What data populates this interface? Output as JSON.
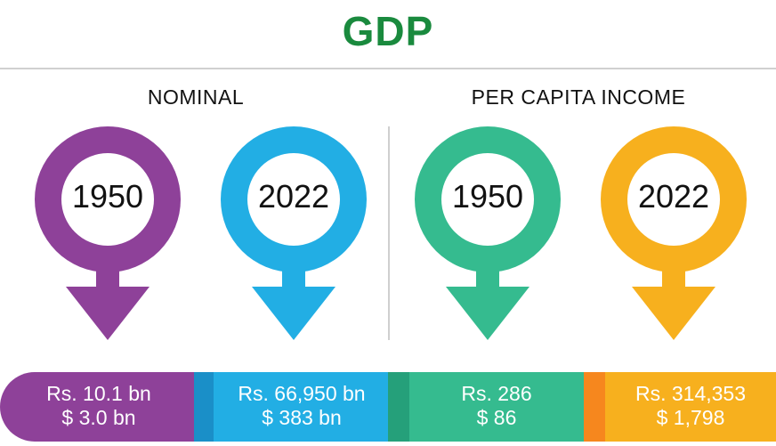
{
  "title": "GDP",
  "sections": {
    "nominal": "NOMINAL",
    "per_capita": "PER CAPITA INCOME"
  },
  "markers": [
    {
      "year": "1950",
      "color": "#8e4199"
    },
    {
      "year": "2022",
      "color": "#22aee4"
    },
    {
      "year": "1950",
      "color": "#35bb8f"
    },
    {
      "year": "2022",
      "color": "#f7b01e"
    }
  ],
  "values": [
    {
      "line1": "Rs. 10.1 bn",
      "line2": "$ 3.0 bn",
      "color": "#8e4199"
    },
    {
      "line1": "Rs. 66,950 bn",
      "line2": "$ 383 bn",
      "color": "#22aee4"
    },
    {
      "line1": "Rs. 286",
      "line2": "$ 86",
      "color": "#35bb8f"
    },
    {
      "line1": "Rs. 314,353",
      "line2": "$ 1,798",
      "color": "#f7b01e"
    }
  ]
}
